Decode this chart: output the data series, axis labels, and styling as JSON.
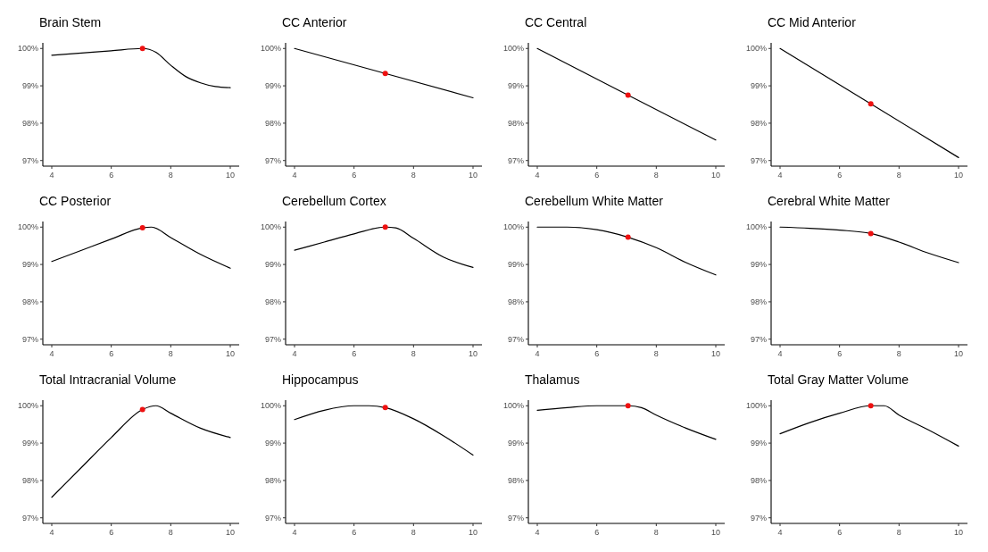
{
  "chart_data": [
    {
      "type": "line",
      "title": "Brain Stem",
      "xlim": [
        3.7,
        10.3
      ],
      "xticks": [
        4,
        6,
        8,
        10
      ],
      "ylim": [
        96.85,
        100.15
      ],
      "yticks": [
        {
          "value": 97,
          "label": "97%"
        },
        {
          "value": 98,
          "label": "98%"
        },
        {
          "value": 99,
          "label": "99%"
        },
        {
          "value": 100,
          "label": "100%"
        }
      ],
      "grid": false,
      "series": [
        {
          "type": "line",
          "color": "#000000",
          "x": [
            4,
            5,
            6,
            7.05,
            7.5,
            8,
            8.5,
            9,
            9.5,
            10
          ],
          "values": [
            99.82,
            99.88,
            99.94,
            100,
            99.9,
            99.55,
            99.25,
            99.08,
            98.98,
            98.95
          ]
        },
        {
          "type": "scatter",
          "color": "#ee1111",
          "marker": "circle",
          "x": [
            7.05
          ],
          "values": [
            100
          ]
        }
      ]
    },
    {
      "type": "line",
      "title": "CC Anterior",
      "xlim": [
        3.7,
        10.3
      ],
      "xticks": [
        4,
        6,
        8,
        10
      ],
      "ylim": [
        96.85,
        100.15
      ],
      "yticks": [
        {
          "value": 97,
          "label": "97%"
        },
        {
          "value": 98,
          "label": "98%"
        },
        {
          "value": 99,
          "label": "99%"
        },
        {
          "value": 100,
          "label": "100%"
        }
      ],
      "grid": false,
      "series": [
        {
          "type": "line",
          "color": "#000000",
          "x": [
            4,
            7.05,
            10
          ],
          "values": [
            100,
            99.33,
            98.68
          ]
        },
        {
          "type": "scatter",
          "color": "#ee1111",
          "marker": "circle",
          "x": [
            7.05
          ],
          "values": [
            99.33
          ]
        }
      ]
    },
    {
      "type": "line",
      "title": "CC Central",
      "xlim": [
        3.7,
        10.3
      ],
      "xticks": [
        4,
        6,
        8,
        10
      ],
      "ylim": [
        96.85,
        100.15
      ],
      "yticks": [
        {
          "value": 97,
          "label": "97%"
        },
        {
          "value": 98,
          "label": "98%"
        },
        {
          "value": 99,
          "label": "99%"
        },
        {
          "value": 100,
          "label": "100%"
        }
      ],
      "grid": false,
      "series": [
        {
          "type": "line",
          "color": "#000000",
          "x": [
            4,
            7.05,
            10
          ],
          "values": [
            100,
            98.75,
            97.55
          ]
        },
        {
          "type": "scatter",
          "color": "#ee1111",
          "marker": "circle",
          "x": [
            7.05
          ],
          "values": [
            98.75
          ]
        }
      ]
    },
    {
      "type": "line",
      "title": "CC Mid Anterior",
      "xlim": [
        3.7,
        10.3
      ],
      "xticks": [
        4,
        6,
        8,
        10
      ],
      "ylim": [
        96.85,
        100.15
      ],
      "yticks": [
        {
          "value": 97,
          "label": "97%"
        },
        {
          "value": 98,
          "label": "98%"
        },
        {
          "value": 99,
          "label": "99%"
        },
        {
          "value": 100,
          "label": "100%"
        }
      ],
      "grid": false,
      "series": [
        {
          "type": "line",
          "color": "#000000",
          "x": [
            4,
            7.05,
            10
          ],
          "values": [
            100,
            98.52,
            97.08
          ]
        },
        {
          "type": "scatter",
          "color": "#ee1111",
          "marker": "circle",
          "x": [
            7.05
          ],
          "values": [
            98.52
          ]
        }
      ]
    },
    {
      "type": "line",
      "title": "CC Posterior",
      "xlim": [
        3.7,
        10.3
      ],
      "xticks": [
        4,
        6,
        8,
        10
      ],
      "ylim": [
        96.85,
        100.15
      ],
      "yticks": [
        {
          "value": 97,
          "label": "97%"
        },
        {
          "value": 98,
          "label": "98%"
        },
        {
          "value": 99,
          "label": "99%"
        },
        {
          "value": 100,
          "label": "100%"
        }
      ],
      "grid": false,
      "series": [
        {
          "type": "line",
          "color": "#000000",
          "x": [
            4,
            5,
            6,
            7.05,
            7.35,
            8,
            9,
            10
          ],
          "values": [
            99.08,
            99.38,
            99.68,
            99.98,
            100,
            99.72,
            99.27,
            98.9
          ]
        },
        {
          "type": "scatter",
          "color": "#ee1111",
          "marker": "circle",
          "x": [
            7.05
          ],
          "values": [
            99.98
          ]
        }
      ]
    },
    {
      "type": "line",
      "title": "Cerebellum Cortex",
      "xlim": [
        3.7,
        10.3
      ],
      "xticks": [
        4,
        6,
        8,
        10
      ],
      "ylim": [
        96.85,
        100.15
      ],
      "yticks": [
        {
          "value": 97,
          "label": "97%"
        },
        {
          "value": 98,
          "label": "98%"
        },
        {
          "value": 99,
          "label": "99%"
        },
        {
          "value": 100,
          "label": "100%"
        }
      ],
      "grid": false,
      "series": [
        {
          "type": "line",
          "color": "#000000",
          "x": [
            4,
            5,
            6,
            7.05,
            7.4,
            8,
            9,
            10
          ],
          "values": [
            99.38,
            99.6,
            99.82,
            100,
            99.98,
            99.7,
            99.2,
            98.92
          ]
        },
        {
          "type": "scatter",
          "color": "#ee1111",
          "marker": "circle",
          "x": [
            7.05
          ],
          "values": [
            100
          ]
        }
      ]
    },
    {
      "type": "line",
      "title": "Cerebellum White Matter",
      "xlim": [
        3.7,
        10.3
      ],
      "xticks": [
        4,
        6,
        8,
        10
      ],
      "ylim": [
        96.85,
        100.15
      ],
      "yticks": [
        {
          "value": 97,
          "label": "97%"
        },
        {
          "value": 98,
          "label": "98%"
        },
        {
          "value": 99,
          "label": "99%"
        },
        {
          "value": 100,
          "label": "100%"
        }
      ],
      "grid": false,
      "series": [
        {
          "type": "line",
          "color": "#000000",
          "x": [
            4,
            5,
            6,
            7.05,
            8,
            9,
            10
          ],
          "values": [
            100,
            100,
            99.93,
            99.73,
            99.45,
            99.05,
            98.72
          ]
        },
        {
          "type": "scatter",
          "color": "#ee1111",
          "marker": "circle",
          "x": [
            7.05
          ],
          "values": [
            99.73
          ]
        }
      ]
    },
    {
      "type": "line",
      "title": "Cerebral White Matter",
      "xlim": [
        3.7,
        10.3
      ],
      "xticks": [
        4,
        6,
        8,
        10
      ],
      "ylim": [
        96.85,
        100.15
      ],
      "yticks": [
        {
          "value": 97,
          "label": "97%"
        },
        {
          "value": 98,
          "label": "98%"
        },
        {
          "value": 99,
          "label": "99%"
        },
        {
          "value": 100,
          "label": "100%"
        }
      ],
      "grid": false,
      "series": [
        {
          "type": "line",
          "color": "#000000",
          "x": [
            4,
            5,
            6,
            7.05,
            8,
            9,
            10
          ],
          "values": [
            100,
            99.97,
            99.92,
            99.83,
            99.6,
            99.3,
            99.05
          ]
        },
        {
          "type": "scatter",
          "color": "#ee1111",
          "marker": "circle",
          "x": [
            7.05
          ],
          "values": [
            99.83
          ]
        }
      ]
    },
    {
      "type": "line",
      "title": "Total Intracranial Volume",
      "xlim": [
        3.7,
        10.3
      ],
      "xticks": [
        4,
        6,
        8,
        10
      ],
      "ylim": [
        96.85,
        100.15
      ],
      "yticks": [
        {
          "value": 97,
          "label": "97%"
        },
        {
          "value": 98,
          "label": "98%"
        },
        {
          "value": 99,
          "label": "99%"
        },
        {
          "value": 100,
          "label": "100%"
        }
      ],
      "grid": false,
      "series": [
        {
          "type": "line",
          "color": "#000000",
          "x": [
            4,
            5,
            6,
            7.05,
            7.5,
            8,
            9,
            10
          ],
          "values": [
            97.55,
            98.35,
            99.15,
            99.9,
            100,
            99.8,
            99.4,
            99.15
          ]
        },
        {
          "type": "scatter",
          "color": "#ee1111",
          "marker": "circle",
          "x": [
            7.05
          ],
          "values": [
            99.9
          ]
        }
      ]
    },
    {
      "type": "line",
      "title": "Hippocampus",
      "xlim": [
        3.7,
        10.3
      ],
      "xticks": [
        4,
        6,
        8,
        10
      ],
      "ylim": [
        96.85,
        100.15
      ],
      "yticks": [
        {
          "value": 97,
          "label": "97%"
        },
        {
          "value": 98,
          "label": "98%"
        },
        {
          "value": 99,
          "label": "99%"
        },
        {
          "value": 100,
          "label": "100%"
        }
      ],
      "grid": false,
      "series": [
        {
          "type": "line",
          "color": "#000000",
          "x": [
            4,
            5,
            6,
            6.5,
            7.05,
            8,
            9,
            10
          ],
          "values": [
            99.63,
            99.88,
            100,
            100,
            99.95,
            99.65,
            99.2,
            98.68
          ]
        },
        {
          "type": "scatter",
          "color": "#ee1111",
          "marker": "circle",
          "x": [
            7.05
          ],
          "values": [
            99.95
          ]
        }
      ]
    },
    {
      "type": "line",
      "title": "Thalamus",
      "xlim": [
        3.7,
        10.3
      ],
      "xticks": [
        4,
        6,
        8,
        10
      ],
      "ylim": [
        96.85,
        100.15
      ],
      "yticks": [
        {
          "value": 97,
          "label": "97%"
        },
        {
          "value": 98,
          "label": "98%"
        },
        {
          "value": 99,
          "label": "99%"
        },
        {
          "value": 100,
          "label": "100%"
        }
      ],
      "grid": false,
      "series": [
        {
          "type": "line",
          "color": "#000000",
          "x": [
            4,
            5,
            6,
            7.05,
            7.5,
            8,
            9,
            10
          ],
          "values": [
            99.88,
            99.95,
            100,
            100,
            99.95,
            99.75,
            99.4,
            99.1
          ]
        },
        {
          "type": "scatter",
          "color": "#ee1111",
          "marker": "circle",
          "x": [
            7.05
          ],
          "values": [
            100
          ]
        }
      ]
    },
    {
      "type": "line",
      "title": "Total Gray Matter Volume",
      "xlim": [
        3.7,
        10.3
      ],
      "xticks": [
        4,
        6,
        8,
        10
      ],
      "ylim": [
        96.85,
        100.15
      ],
      "yticks": [
        {
          "value": 97,
          "label": "97%"
        },
        {
          "value": 98,
          "label": "98%"
        },
        {
          "value": 99,
          "label": "99%"
        },
        {
          "value": 100,
          "label": "100%"
        }
      ],
      "grid": false,
      "series": [
        {
          "type": "line",
          "color": "#000000",
          "x": [
            4,
            5,
            6,
            7.05,
            7.5,
            8,
            9,
            10
          ],
          "values": [
            99.25,
            99.55,
            99.8,
            100,
            100,
            99.75,
            99.35,
            98.92
          ]
        },
        {
          "type": "scatter",
          "color": "#ee1111",
          "marker": "circle",
          "x": [
            7.05
          ],
          "values": [
            100
          ]
        }
      ]
    }
  ]
}
